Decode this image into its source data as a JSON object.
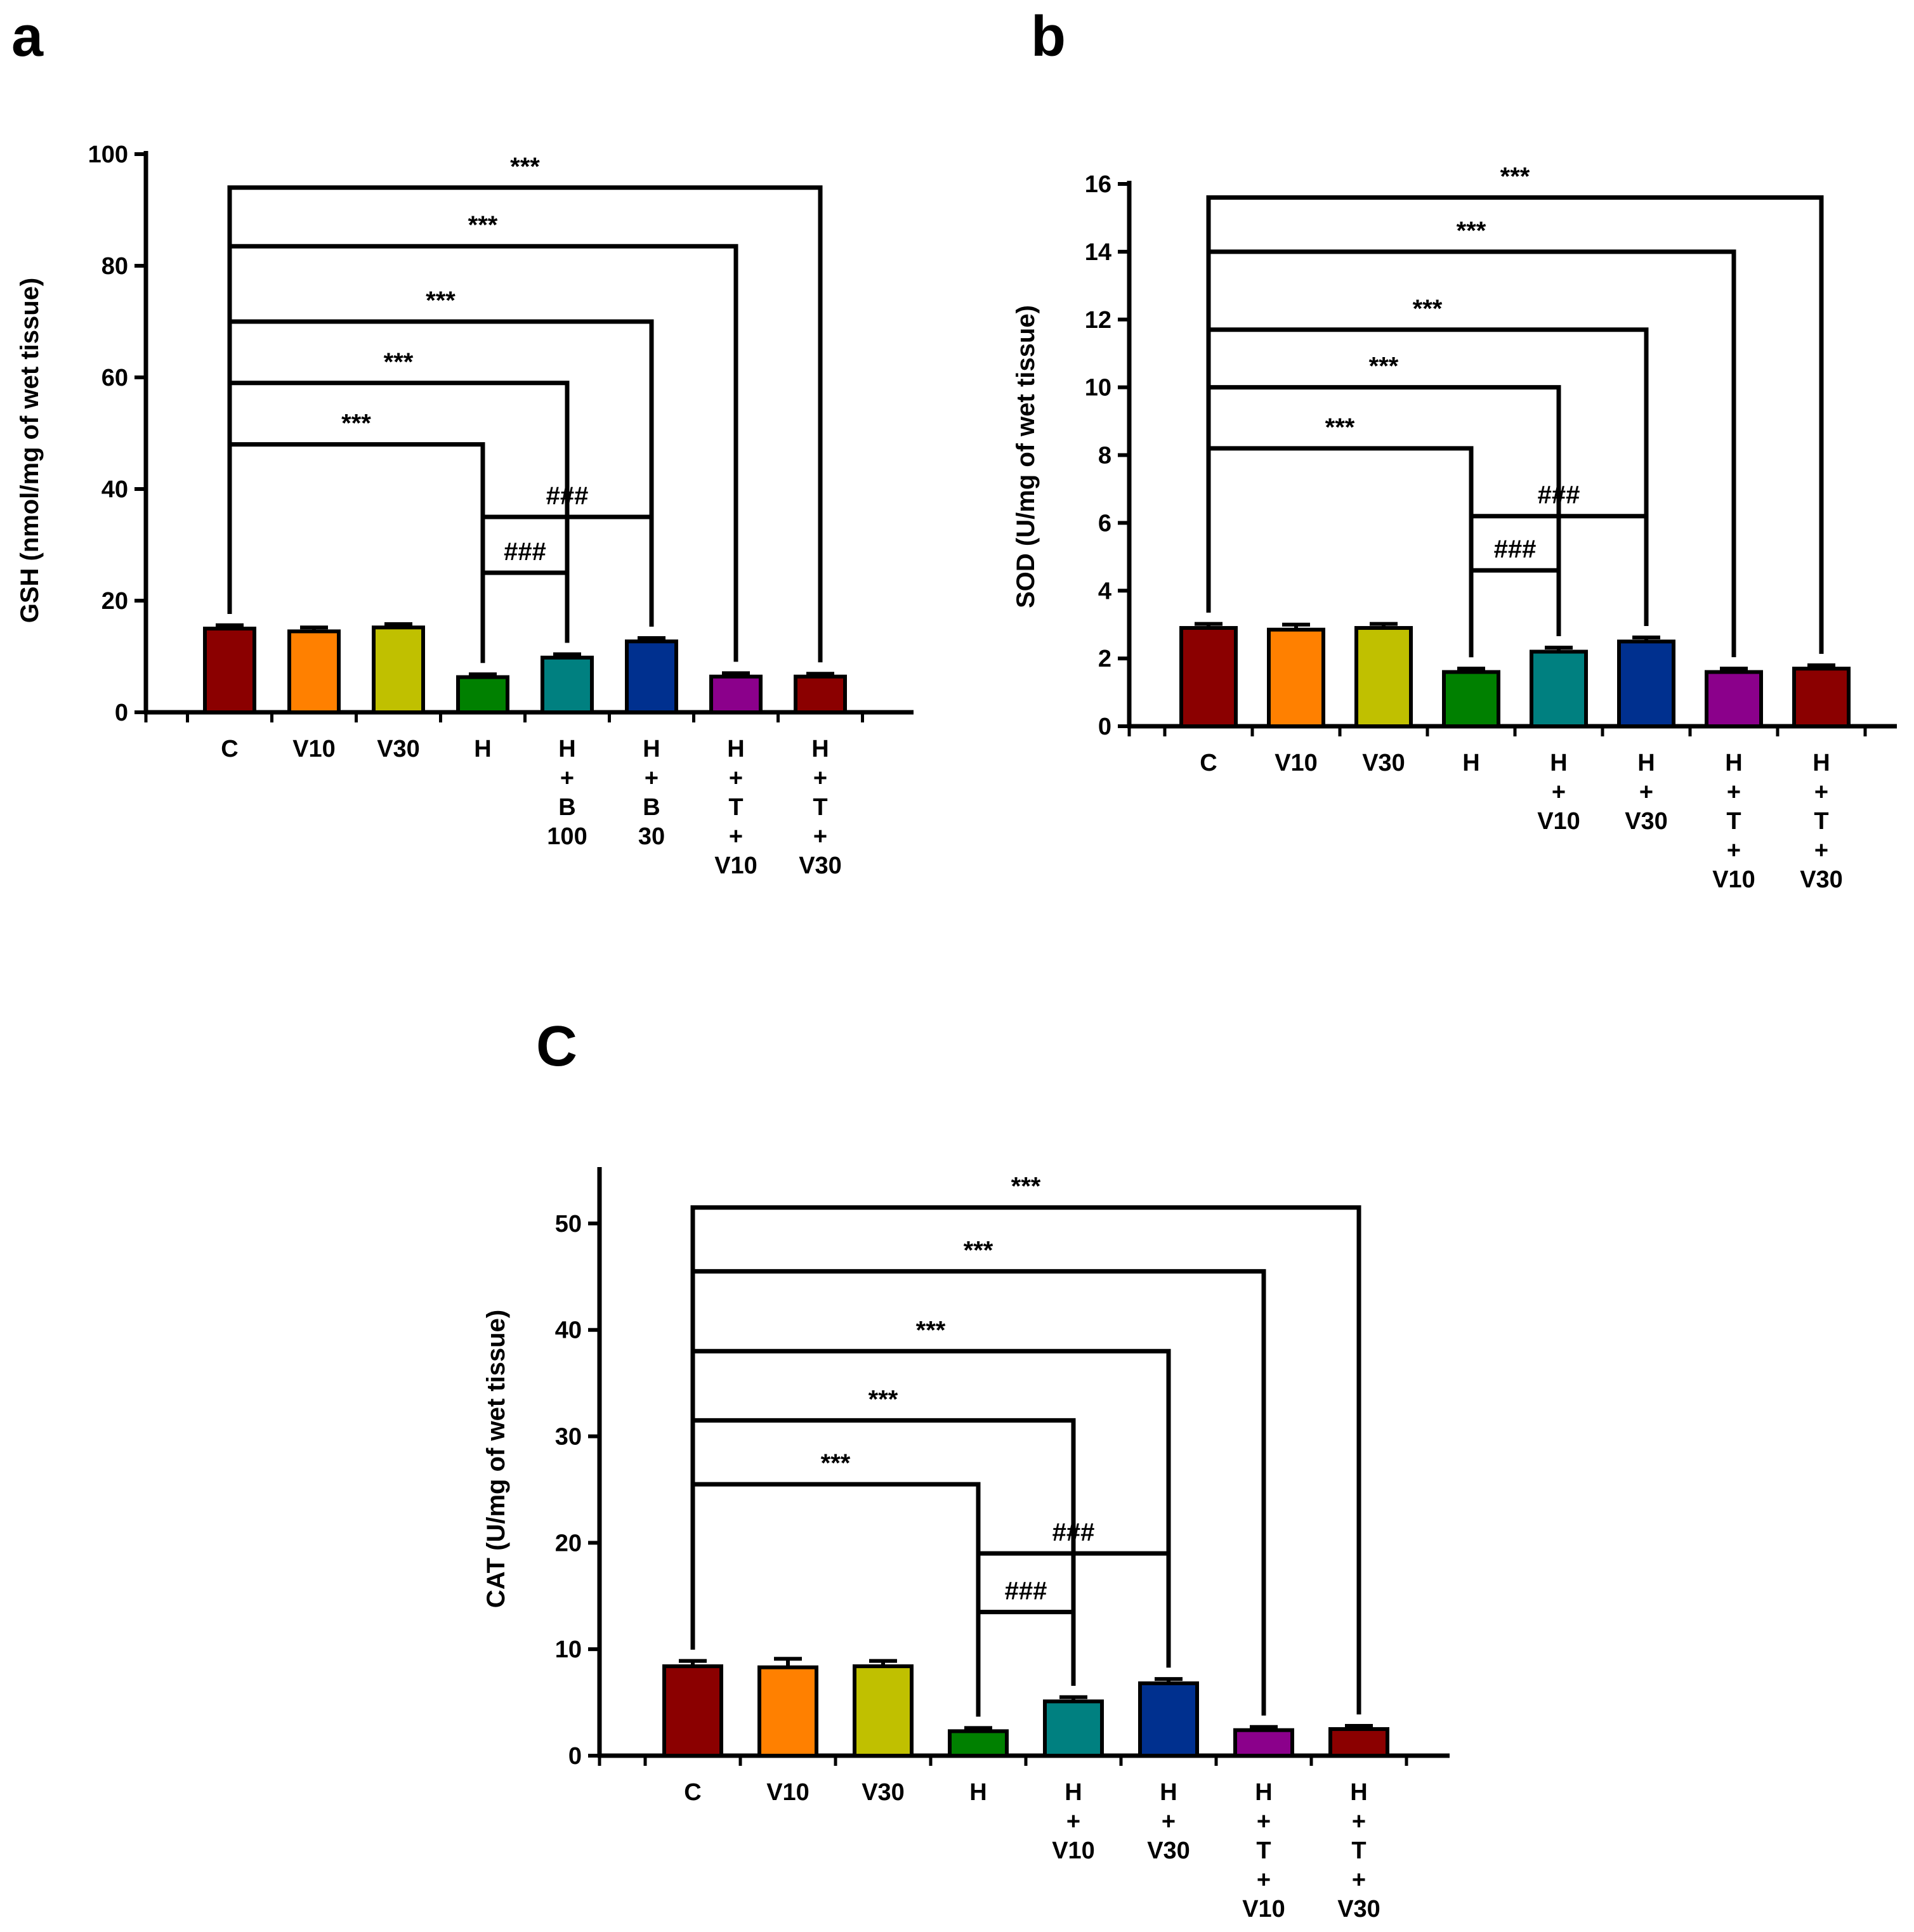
{
  "chart_data": [
    {
      "type": "bar",
      "panel": "a",
      "ylabel": "GSH (nmol/mg of wet tissue)",
      "ylim": [
        0,
        100
      ],
      "yticks": [
        0,
        20,
        40,
        60,
        80,
        100
      ],
      "categories": [
        [
          "C"
        ],
        [
          "V10"
        ],
        [
          "V30"
        ],
        [
          "H"
        ],
        [
          "H",
          "+",
          "B",
          "100"
        ],
        [
          "H",
          "+",
          "B",
          "30"
        ],
        [
          "H",
          "+",
          "T",
          "+",
          "V10"
        ],
        [
          "H",
          "+",
          "T",
          "+",
          "V30"
        ]
      ],
      "values": [
        15,
        14.5,
        15.2,
        6.3,
        9.8,
        12.7,
        6.4,
        6.4
      ],
      "errors": [
        0.6,
        0.7,
        0.6,
        0.5,
        0.6,
        0.6,
        0.6,
        0.5
      ],
      "colors": [
        "#8b0000",
        "#ff8000",
        "#c0c000",
        "#008000",
        "#008080",
        "#00308f",
        "#8b008b",
        "#8b0000"
      ],
      "brackets": [
        {
          "from": 0,
          "to": 7,
          "y": 94,
          "label": "***"
        },
        {
          "from": 0,
          "to": 6,
          "y": 83.5,
          "label": "***"
        },
        {
          "from": 0,
          "to": 5,
          "y": 70,
          "label": "***"
        },
        {
          "from": 0,
          "to": 4,
          "y": 59,
          "label": "***"
        },
        {
          "from": 0,
          "to": 3,
          "y": 48,
          "label": "***"
        },
        {
          "from": 3,
          "to": 5,
          "y": 35,
          "label": "###"
        },
        {
          "from": 3,
          "to": 4,
          "y": 25,
          "label": "###"
        }
      ]
    },
    {
      "type": "bar",
      "panel": "b",
      "ylabel": "SOD (U/mg of wet tissue)",
      "ylim": [
        0,
        16
      ],
      "yticks": [
        0,
        2,
        4,
        6,
        8,
        10,
        12,
        14,
        16
      ],
      "categories": [
        [
          "C"
        ],
        [
          "V10"
        ],
        [
          "V30"
        ],
        [
          "H"
        ],
        [
          "H",
          "+",
          "V10"
        ],
        [
          "H",
          "+",
          "V30"
        ],
        [
          "H",
          "+",
          "T",
          "+",
          "V10"
        ],
        [
          "H",
          "+",
          "T",
          "+",
          "V30"
        ]
      ],
      "values": [
        2.9,
        2.85,
        2.9,
        1.6,
        2.2,
        2.5,
        1.6,
        1.7
      ],
      "errors": [
        0.12,
        0.15,
        0.12,
        0.1,
        0.12,
        0.12,
        0.1,
        0.1
      ],
      "colors": [
        "#8b0000",
        "#ff8000",
        "#c0c000",
        "#008000",
        "#008080",
        "#00308f",
        "#8b008b",
        "#8b0000"
      ],
      "brackets": [
        {
          "from": 0,
          "to": 7,
          "y": 15.6,
          "label": "***"
        },
        {
          "from": 0,
          "to": 6,
          "y": 14,
          "label": "***"
        },
        {
          "from": 0,
          "to": 5,
          "y": 11.7,
          "label": "***"
        },
        {
          "from": 0,
          "to": 4,
          "y": 10,
          "label": "***"
        },
        {
          "from": 0,
          "to": 3,
          "y": 8.2,
          "label": "***"
        },
        {
          "from": 3,
          "to": 5,
          "y": 6.2,
          "label": "###"
        },
        {
          "from": 3,
          "to": 4,
          "y": 4.6,
          "label": "###"
        }
      ]
    },
    {
      "type": "bar",
      "panel": "c",
      "ylabel": "CAT (U/mg of wet tissue)",
      "ylim": [
        0,
        55
      ],
      "yticks": [
        0,
        10,
        20,
        30,
        40,
        50
      ],
      "categories": [
        [
          "C"
        ],
        [
          "V10"
        ],
        [
          "V30"
        ],
        [
          "H"
        ],
        [
          "H",
          "+",
          "V10"
        ],
        [
          "H",
          "+",
          "V30"
        ],
        [
          "H",
          "+",
          "T",
          "+",
          "V10"
        ],
        [
          "H",
          "+",
          "T",
          "+",
          "V30"
        ]
      ],
      "values": [
        8.4,
        8.3,
        8.4,
        2.3,
        5.1,
        6.8,
        2.4,
        2.5
      ],
      "errors": [
        0.5,
        0.8,
        0.5,
        0.3,
        0.4,
        0.4,
        0.3,
        0.3
      ],
      "colors": [
        "#8b0000",
        "#ff8000",
        "#c0c000",
        "#008000",
        "#008080",
        "#00308f",
        "#8b008b",
        "#8b0000"
      ],
      "brackets": [
        {
          "from": 0,
          "to": 7,
          "y": 51.5,
          "label": "***"
        },
        {
          "from": 0,
          "to": 6,
          "y": 45.5,
          "label": "***"
        },
        {
          "from": 0,
          "to": 5,
          "y": 38,
          "label": "***"
        },
        {
          "from": 0,
          "to": 4,
          "y": 31.5,
          "label": "***"
        },
        {
          "from": 0,
          "to": 3,
          "y": 25.5,
          "label": "***"
        },
        {
          "from": 3,
          "to": 5,
          "y": 19,
          "label": "###"
        },
        {
          "from": 3,
          "to": 4,
          "y": 13.5,
          "label": "###"
        }
      ]
    }
  ]
}
